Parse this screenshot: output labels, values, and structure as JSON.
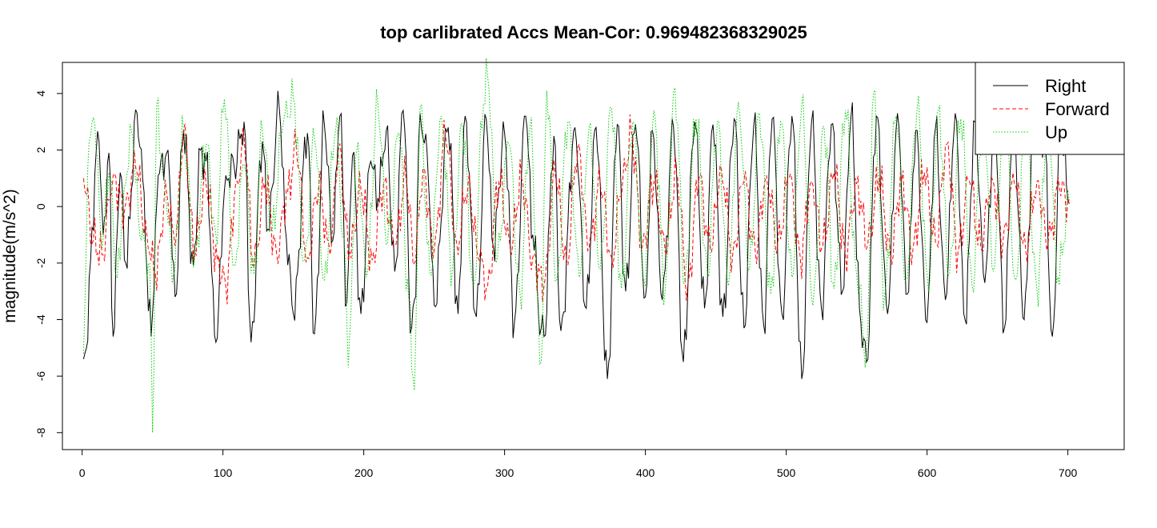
{
  "chart_data": {
    "type": "line",
    "title": "top carlibrated Accs Mean-Cor: 0.969482368329025",
    "xlabel": "",
    "ylabel": "magnitude(m/s^2)",
    "xlim": [
      -14,
      740
    ],
    "ylim": [
      -8.6,
      5.1
    ],
    "x_ticks": [
      0,
      100,
      200,
      300,
      400,
      500,
      600,
      700
    ],
    "y_ticks": [
      -8,
      -6,
      -4,
      -2,
      0,
      2,
      4
    ],
    "grid": false,
    "legend_position": "top-right",
    "n_points": 701,
    "series": [
      {
        "name": "Right",
        "color": "#000000",
        "line_style": "solid",
        "x": [
          1,
          12,
          15,
          19,
          22,
          27,
          31,
          39,
          44,
          47,
          50,
          54,
          61,
          66,
          72,
          79,
          84,
          88,
          95,
          102,
          108,
          115,
          120,
          128,
          132,
          140,
          145,
          150,
          160,
          165,
          172,
          178,
          183,
          188,
          192,
          198,
          205,
          210,
          216,
          222,
          228,
          234,
          236,
          240,
          245,
          250,
          260,
          267,
          272,
          280,
          287,
          292,
          300,
          307,
          315,
          320,
          326,
          328,
          335,
          340,
          350,
          358,
          365,
          373,
          380,
          386,
          393,
          400,
          405,
          412,
          420,
          427,
          435,
          442,
          448,
          455,
          463,
          470,
          477,
          484,
          490,
          497,
          504,
          511,
          518,
          525,
          532,
          540,
          546,
          553,
          557,
          564,
          572,
          579,
          586,
          592,
          600,
          606,
          613,
          620,
          627,
          634,
          641,
          648,
          655,
          661,
          669,
          676,
          683,
          689,
          695,
          701
        ],
        "values": [
          -5.4,
          2.3,
          -1.0,
          1.9,
          -4.6,
          1.2,
          -2.0,
          3.3,
          0.5,
          -3.7,
          -3.8,
          1.1,
          2.0,
          -3.2,
          2.7,
          -2.1,
          2.0,
          1.6,
          -4.8,
          1.1,
          1.4,
          3.0,
          -4.8,
          2.3,
          -0.8,
          3.5,
          -1.1,
          -3.8,
          2.6,
          -4.5,
          2.9,
          -1.2,
          3.2,
          -3.4,
          1.8,
          -3.8,
          1.6,
          0.3,
          2.7,
          -2.3,
          3.4,
          -4.3,
          -3.3,
          3.3,
          1.9,
          -3.5,
          2.8,
          -3.8,
          3.2,
          -3.9,
          3.1,
          -1.4,
          2.6,
          -4.1,
          3.2,
          -1.0,
          -4.3,
          -4.6,
          2.5,
          -4.4,
          2.8,
          -3.6,
          2.8,
          -6.1,
          2.9,
          -3.0,
          2.9,
          -3.2,
          2.7,
          -3.3,
          2.8,
          -5.5,
          3.0,
          -3.6,
          2.9,
          -3.9,
          3.1,
          -4.3,
          2.9,
          -4.2,
          3.1,
          -3.8,
          3.2,
          -6.1,
          3.0,
          -3.6,
          2.9,
          -3.0,
          3.2,
          -4.1,
          -5.5,
          3.2,
          -3.8,
          3.3,
          -3.1,
          2.7,
          -4.1,
          2.8,
          -3.3,
          3.3,
          -4.0,
          3.0,
          -2.7,
          2.9,
          -4.3,
          3.2,
          -4.0,
          3.0,
          2.5,
          -4.6,
          2.9,
          0.1
        ]
      },
      {
        "name": "Forward",
        "color": "#ff0000",
        "line_style": "dashed",
        "x": [
          1,
          8,
          14,
          22,
          30,
          38,
          46,
          52,
          60,
          66,
          72,
          80,
          88,
          96,
          102,
          110,
          115,
          122,
          130,
          138,
          146,
          152,
          160,
          168,
          176,
          182,
          190,
          198,
          206,
          214,
          222,
          230,
          236,
          242,
          250,
          258,
          266,
          274,
          282,
          288,
          296,
          304,
          312,
          320,
          328,
          336,
          344,
          352,
          360,
          368,
          376,
          384,
          390,
          398,
          406,
          414,
          422,
          430,
          438,
          446,
          454,
          462,
          470,
          478,
          486,
          494,
          502,
          510,
          518,
          526,
          534,
          542,
          550,
          558,
          566,
          574,
          582,
          590,
          598,
          606,
          614,
          622,
          630,
          638,
          646,
          654,
          662,
          670,
          678,
          686,
          694,
          701
        ],
        "values": [
          1.0,
          -1.2,
          -1.7,
          1.1,
          -0.2,
          1.4,
          -1.0,
          -2.4,
          0.5,
          -1.4,
          2.6,
          -1.5,
          0.8,
          -1.9,
          -2.8,
          0.9,
          2.5,
          -2.1,
          0.8,
          -1.6,
          0.5,
          2.1,
          -1.8,
          0.7,
          -1.7,
          2.0,
          -1.6,
          0.6,
          -1.9,
          0.8,
          -1.4,
          1.0,
          -2.0,
          1.3,
          -1.6,
          2.5,
          -1.3,
          0.8,
          -1.9,
          -2.8,
          0.9,
          -1.5,
          1.0,
          -1.8,
          -2.8,
          1.1,
          -1.9,
          2.1,
          -1.5,
          0.8,
          -1.8,
          1.0,
          2.6,
          -1.4,
          0.9,
          -1.6,
          1.2,
          -2.8,
          1.0,
          -1.5,
          1.3,
          -1.7,
          0.9,
          -1.6,
          1.1,
          -1.3,
          1.0,
          -1.8,
          0.9,
          -1.4,
          1.2,
          -1.6,
          0.8,
          -1.3,
          1.0,
          -1.7,
          0.9,
          -1.5,
          1.2,
          -1.3,
          2.2,
          -1.6,
          0.9,
          -1.4,
          1.0,
          -1.2,
          0.8,
          -1.5,
          0.9,
          -1.3,
          0.7,
          0.1
        ]
      },
      {
        "name": "Up",
        "color": "#00cc00",
        "line_style": "dotted",
        "x": [
          1,
          5,
          9,
          14,
          19,
          25,
          30,
          35,
          42,
          48,
          50,
          53,
          58,
          65,
          72,
          80,
          88,
          95,
          101,
          108,
          115,
          122,
          128,
          135,
          143,
          150,
          158,
          165,
          172,
          180,
          187,
          189,
          195,
          202,
          210,
          217,
          225,
          232,
          236,
          240,
          247,
          255,
          263,
          270,
          278,
          285,
          288,
          295,
          303,
          311,
          318,
          326,
          330,
          337,
          345,
          353,
          360,
          368,
          376,
          383,
          391,
          399,
          406,
          414,
          421,
          428,
          436,
          444,
          451,
          459,
          466,
          474,
          481,
          489,
          496,
          504,
          511,
          519,
          527,
          534,
          542,
          550,
          557,
          562,
          570,
          578,
          585,
          593,
          601,
          608,
          616,
          624,
          632,
          640,
          647,
          655,
          663,
          670,
          678,
          686,
          693,
          701
        ],
        "values": [
          -5.2,
          2.3,
          2.9,
          -1.5,
          1.2,
          -2.5,
          0.7,
          2.7,
          -1.2,
          -2.0,
          -8.0,
          3.6,
          1.0,
          -2.4,
          2.7,
          -1.8,
          2.2,
          -1.0,
          3.8,
          -2.1,
          1.5,
          -2.4,
          2.7,
          -0.9,
          3.0,
          3.8,
          -1.9,
          2.4,
          -2.6,
          2.7,
          -2.0,
          -5.7,
          2.0,
          -2.5,
          3.6,
          -1.3,
          2.6,
          -3.3,
          -6.5,
          3.5,
          -2.4,
          3.2,
          -2.2,
          2.9,
          -2.8,
          3.6,
          4.6,
          -1.8,
          2.2,
          -3.1,
          2.8,
          -5.5,
          4.1,
          -2.6,
          3.0,
          -2.5,
          2.8,
          -2.2,
          3.5,
          -2.9,
          3.0,
          -2.6,
          3.4,
          -3.0,
          4.2,
          -2.7,
          3.1,
          -2.4,
          3.0,
          -2.8,
          3.7,
          -2.2,
          3.3,
          -3.1,
          3.0,
          -2.5,
          3.6,
          -3.5,
          2.8,
          -2.9,
          3.4,
          -2.4,
          -5.2,
          4.0,
          -3.1,
          3.2,
          -2.6,
          3.5,
          -3.0,
          3.4,
          -2.4,
          3.1,
          -2.8,
          3.6,
          -2.3,
          3.2,
          -2.6,
          3.0,
          -2.9,
          3.4,
          -2.5,
          0.2
        ]
      }
    ]
  }
}
